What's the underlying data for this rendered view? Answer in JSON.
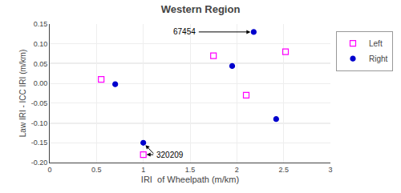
{
  "chart_data": {
    "type": "scatter",
    "title": "Western Region",
    "x_label": "IRI  of Wheelpath (m/km)",
    "y_label": "Law IRI - ICC IRI (m/km)",
    "xlim": [
      0.0,
      3.0
    ],
    "ylim": [
      -0.2,
      0.15
    ],
    "xticks": [
      0,
      0.5,
      1,
      1.5,
      2,
      2.5,
      3
    ],
    "yticks": [
      {
        "value": -0.2,
        "label": "-0.20"
      },
      -0.15,
      {
        "value": -0.1,
        "label": "-0.10"
      },
      -0.05,
      {
        "value": 0,
        "label": "0.00"
      },
      0.05,
      {
        "value": 0.1,
        "label": "0.10"
      },
      0.15
    ],
    "grid": true,
    "legend": "right",
    "series": [
      {
        "name": "Left",
        "color": "#FF00FF",
        "marker": "square-open",
        "x": [
          0.55,
          1.75,
          2.1,
          2.52,
          1.0
        ],
        "values": [
          0.01,
          0.07,
          -0.03,
          0.08,
          -0.18
        ]
      },
      {
        "name": "Right",
        "color": "#0000CD",
        "marker": "circle",
        "x": [
          0.7,
          1.95,
          2.18,
          2.42,
          1.0
        ],
        "values": [
          -0.002,
          0.044,
          0.13,
          -0.09,
          -0.15
        ]
      }
    ],
    "hlines": [
      {
        "value": 0.05,
        "color": "#000000"
      },
      {
        "value": -0.1,
        "color": "#000000"
      }
    ],
    "annotations": [
      {
        "text": "67454",
        "side": "left",
        "points": [
          [
            2.18,
            0.13
          ]
        ]
      },
      {
        "text": "320209",
        "side": "right",
        "points": [
          [
            1.0,
            -0.18
          ],
          [
            1.0,
            -0.15
          ]
        ]
      }
    ]
  }
}
